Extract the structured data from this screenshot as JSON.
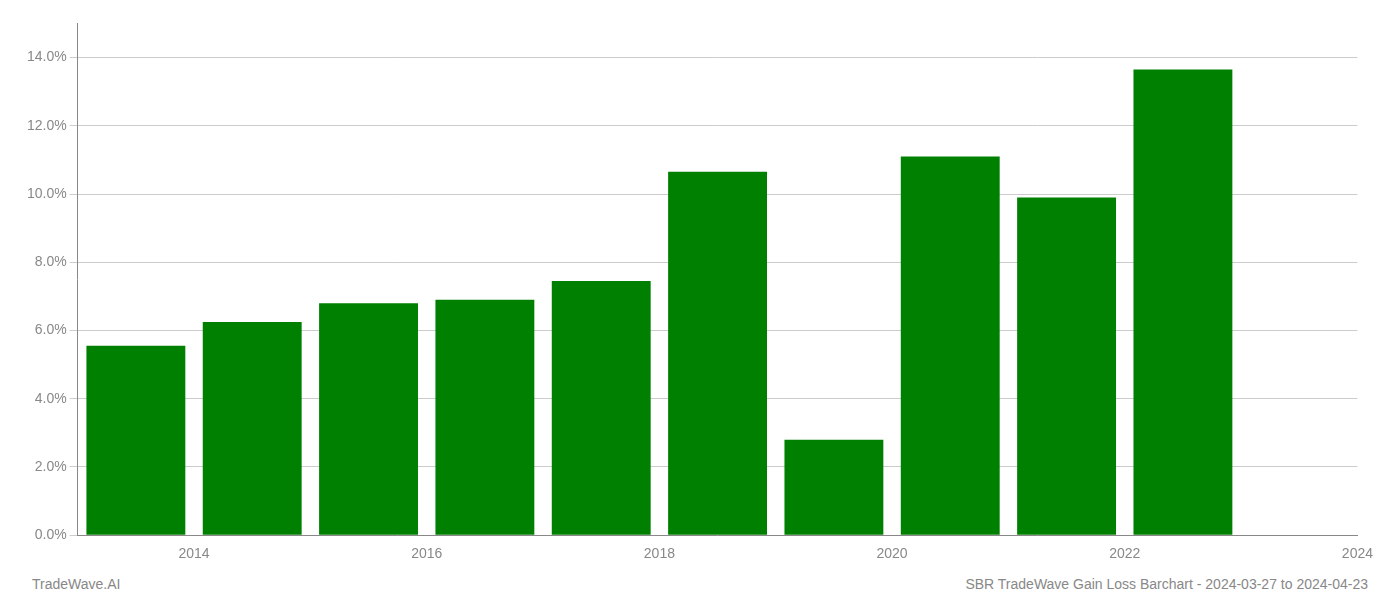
{
  "chart_data": {
    "type": "bar",
    "x": [
      2014,
      2015,
      2016,
      2017,
      2018,
      2019,
      2020,
      2021,
      2022,
      2023
    ],
    "values": [
      0.0555,
      0.0625,
      0.068,
      0.069,
      0.0745,
      0.1065,
      0.028,
      0.111,
      0.099,
      0.1365
    ],
    "color": "#008000",
    "xlim": [
      2013.5,
      2024.5
    ],
    "xticks": [
      {
        "value": 2014.5,
        "label": "2014"
      },
      {
        "value": 2016.5,
        "label": "2016"
      },
      {
        "value": 2018.5,
        "label": "2018"
      },
      {
        "value": 2020.5,
        "label": "2020"
      },
      {
        "value": 2022.5,
        "label": "2022"
      },
      {
        "value": 2024.5,
        "label": "2024"
      }
    ],
    "ylim": [
      0,
      0.15
    ],
    "yticks": [
      {
        "value": 0.0,
        "label": "0.0%"
      },
      {
        "value": 0.02,
        "label": "2.0%"
      },
      {
        "value": 0.04,
        "label": "4.0%"
      },
      {
        "value": 0.06,
        "label": "6.0%"
      },
      {
        "value": 0.08,
        "label": "8.0%"
      },
      {
        "value": 0.1,
        "label": "10.0%"
      },
      {
        "value": 0.12,
        "label": "12.0%"
      },
      {
        "value": 0.14,
        "label": "14.0%"
      }
    ],
    "grid": true,
    "annotations": [
      "TradeWave.AI",
      "SBR TradeWave Gain Loss Barchart - 2024-03-27 to 2024-04-23"
    ]
  }
}
